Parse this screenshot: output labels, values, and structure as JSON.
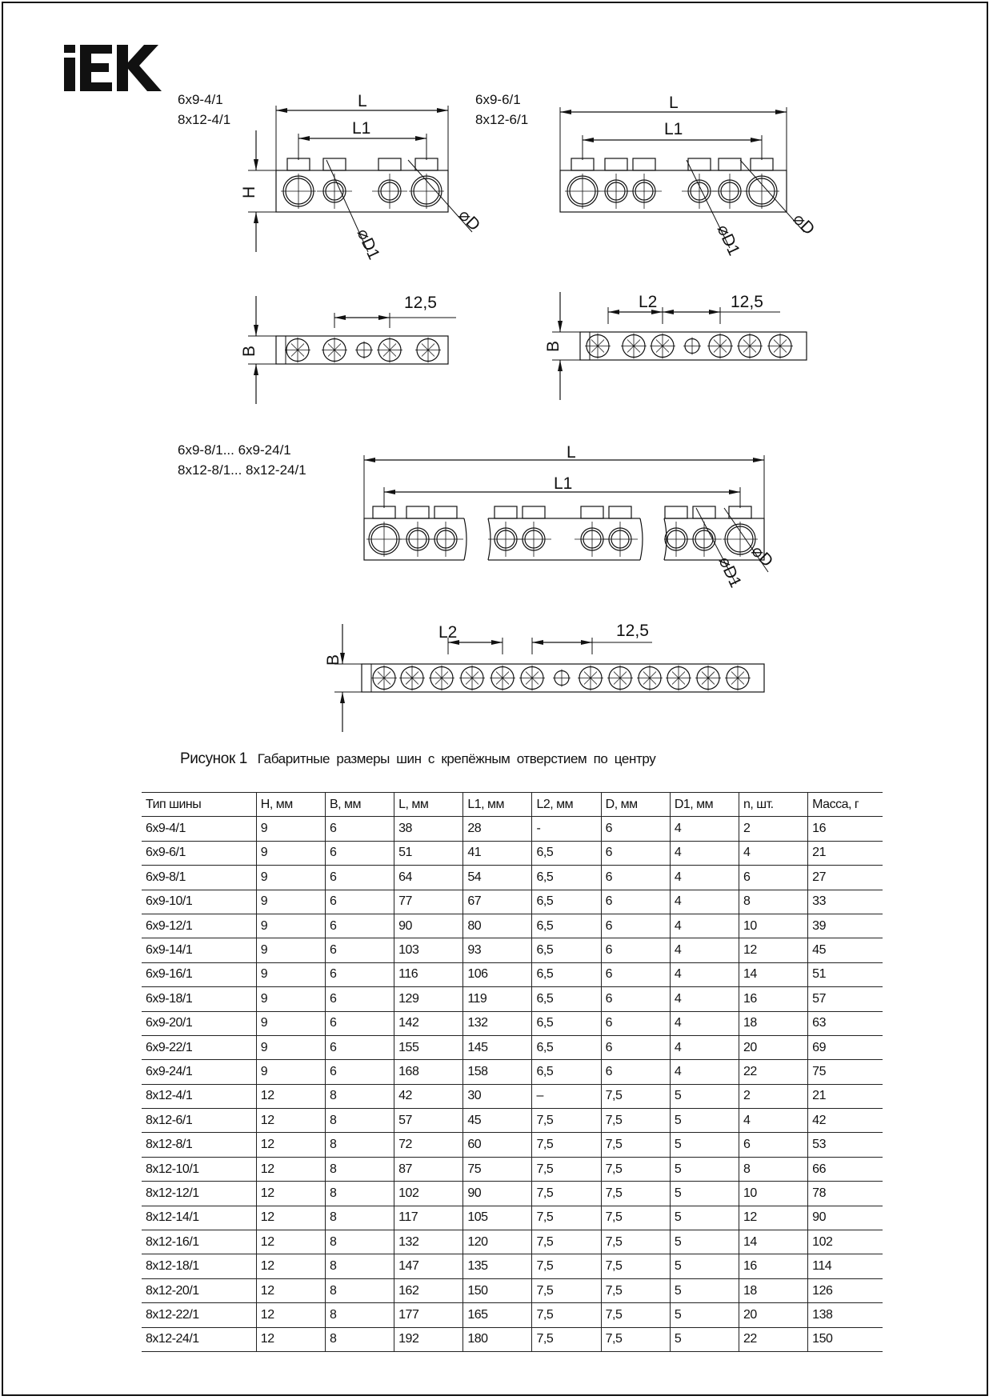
{
  "logo": {
    "text": "IEK",
    "color": "#111111"
  },
  "drawings": {
    "group1": {
      "models": [
        "6x9-4/1",
        "8x12-4/1"
      ]
    },
    "group2": {
      "models": [
        "6x9-6/1",
        "8x12-6/1"
      ]
    },
    "group3": {
      "models": [
        "6x9-8/1... 6x9-24/1",
        "8x12-8/1... 8x12-24/1"
      ]
    },
    "labels": {
      "L": "L",
      "L1": "L1",
      "L2": "L2",
      "H": "H",
      "B": "B",
      "D": "⌀D",
      "D1": "⌀D1",
      "pitch": "12,5"
    }
  },
  "caption": {
    "figure": "Рисунок 1",
    "text": "Габаритные размеры шин с крепёжным отверстием по центру"
  },
  "table": {
    "headers": [
      "Тип шины",
      "H, мм",
      "B, мм",
      "L, мм",
      "L1, мм",
      "L2, мм",
      "D, мм",
      "D1, мм",
      "n, шт.",
      "Масса, г"
    ],
    "rows": [
      [
        "6x9-4/1",
        "9",
        "6",
        "38",
        "28",
        "-",
        "6",
        "4",
        "2",
        "16"
      ],
      [
        "6x9-6/1",
        "9",
        "6",
        "51",
        "41",
        "6,5",
        "6",
        "4",
        "4",
        "21"
      ],
      [
        "6x9-8/1",
        "9",
        "6",
        "64",
        "54",
        "6,5",
        "6",
        "4",
        "6",
        "27"
      ],
      [
        "6x9-10/1",
        "9",
        "6",
        "77",
        "67",
        "6,5",
        "6",
        "4",
        "8",
        "33"
      ],
      [
        "6x9-12/1",
        "9",
        "6",
        "90",
        "80",
        "6,5",
        "6",
        "4",
        "10",
        "39"
      ],
      [
        "6x9-14/1",
        "9",
        "6",
        "103",
        "93",
        "6,5",
        "6",
        "4",
        "12",
        "45"
      ],
      [
        "6x9-16/1",
        "9",
        "6",
        "116",
        "106",
        "6,5",
        "6",
        "4",
        "14",
        "51"
      ],
      [
        "6x9-18/1",
        "9",
        "6",
        "129",
        "119",
        "6,5",
        "6",
        "4",
        "16",
        "57"
      ],
      [
        "6x9-20/1",
        "9",
        "6",
        "142",
        "132",
        "6,5",
        "6",
        "4",
        "18",
        "63"
      ],
      [
        "6x9-22/1",
        "9",
        "6",
        "155",
        "145",
        "6,5",
        "6",
        "4",
        "20",
        "69"
      ],
      [
        "6x9-24/1",
        "9",
        "6",
        "168",
        "158",
        "6,5",
        "6",
        "4",
        "22",
        "75"
      ],
      [
        "8x12-4/1",
        "12",
        "8",
        "42",
        "30",
        "–",
        "7,5",
        "5",
        "2",
        "21"
      ],
      [
        "8x12-6/1",
        "12",
        "8",
        "57",
        "45",
        "7,5",
        "7,5",
        "5",
        "4",
        "42"
      ],
      [
        "8x12-8/1",
        "12",
        "8",
        "72",
        "60",
        "7,5",
        "7,5",
        "5",
        "6",
        "53"
      ],
      [
        "8x12-10/1",
        "12",
        "8",
        "87",
        "75",
        "7,5",
        "7,5",
        "5",
        "8",
        "66"
      ],
      [
        "8x12-12/1",
        "12",
        "8",
        "102",
        "90",
        "7,5",
        "7,5",
        "5",
        "10",
        "78"
      ],
      [
        "8x12-14/1",
        "12",
        "8",
        "117",
        "105",
        "7,5",
        "7,5",
        "5",
        "12",
        "90"
      ],
      [
        "8x12-16/1",
        "12",
        "8",
        "132",
        "120",
        "7,5",
        "7,5",
        "5",
        "14",
        "102"
      ],
      [
        "8x12-18/1",
        "12",
        "8",
        "147",
        "135",
        "7,5",
        "7,5",
        "5",
        "16",
        "114"
      ],
      [
        "8x12-20/1",
        "12",
        "8",
        "162",
        "150",
        "7,5",
        "7,5",
        "5",
        "18",
        "126"
      ],
      [
        "8x12-22/1",
        "12",
        "8",
        "177",
        "165",
        "7,5",
        "7,5",
        "5",
        "20",
        "138"
      ],
      [
        "8x12-24/1",
        "12",
        "8",
        "192",
        "180",
        "7,5",
        "7,5",
        "5",
        "22",
        "150"
      ]
    ]
  }
}
